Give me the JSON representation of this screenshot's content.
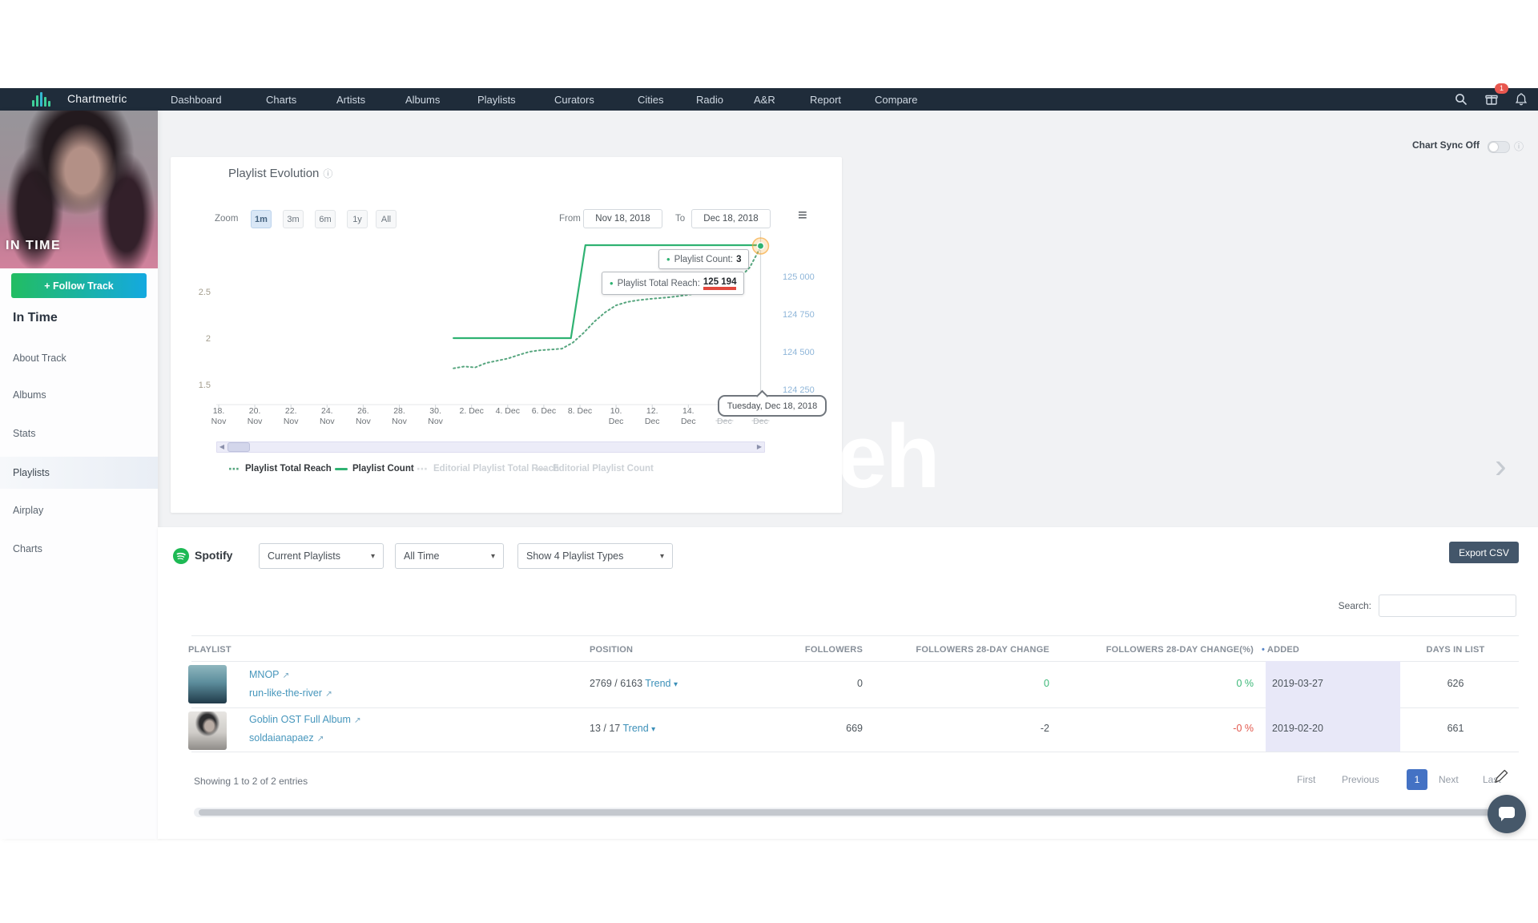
{
  "navbar": {
    "brand": "Chartmetric",
    "items": [
      "Dashboard",
      "Charts",
      "Artists",
      "Albums",
      "Playlists",
      "Curators",
      "Cities",
      "Radio",
      "A&R",
      "Report",
      "Compare"
    ],
    "badge_count": "1"
  },
  "sidebar": {
    "album_overlay": "IN TIME",
    "follow_button": "+ Follow Track",
    "track_title": "In Time",
    "items": [
      "About Track",
      "Albums",
      "Stats",
      "Playlists",
      "Airplay",
      "Charts"
    ],
    "active_item": "Playlists"
  },
  "chart_sync": {
    "label": "Chart Sync Off"
  },
  "chart_card": {
    "title": "Playlist Evolution",
    "zoom_label": "Zoom",
    "zoom_options": [
      "1m",
      "3m",
      "6m",
      "1y",
      "All"
    ],
    "zoom_active": "1m",
    "from_label": "From",
    "from_value": "Nov 18, 2018",
    "to_label": "To",
    "to_value": "Dec 18, 2018"
  },
  "chart_data": {
    "type": "line",
    "title": "Playlist Evolution",
    "x_ticks": [
      "18. Nov",
      "20. Nov",
      "22. Nov",
      "24. Nov",
      "26. Nov",
      "28. Nov",
      "30. Nov",
      "2. Dec",
      "4. Dec",
      "6. Dec",
      "8. Dec",
      "10. Dec",
      "12. Dec",
      "14. Dec",
      "16. Dec",
      "18. Dec"
    ],
    "x_range": [
      "Nov 18, 2018",
      "Dec 18, 2018"
    ],
    "y_left": {
      "ticks": [
        2.5,
        2,
        1.5
      ]
    },
    "y_right": {
      "ticks": [
        "125 000",
        "124 750",
        "124 500",
        "124 250"
      ],
      "values": [
        125000,
        124750,
        124500,
        124250
      ]
    },
    "series": [
      {
        "name": "Playlist Total Reach",
        "style": "dotted",
        "axis": "right",
        "color": "#57a67f",
        "points": [
          [
            13,
            124390
          ],
          [
            13.6,
            124402
          ],
          [
            14.2,
            124396
          ],
          [
            14.8,
            124425
          ],
          [
            15.4,
            124440
          ],
          [
            16,
            124455
          ],
          [
            16.6,
            124478
          ],
          [
            17.2,
            124500
          ],
          [
            17.8,
            124510
          ],
          [
            18.4,
            124515
          ],
          [
            19,
            124520
          ],
          [
            19.6,
            124560
          ],
          [
            20.2,
            124625
          ],
          [
            20.8,
            124700
          ],
          [
            21.4,
            124762
          ],
          [
            22,
            124808
          ],
          [
            22.6,
            124830
          ],
          [
            23.2,
            124842
          ],
          [
            24,
            124852
          ],
          [
            25,
            124862
          ],
          [
            26,
            124878
          ],
          [
            27,
            124898
          ],
          [
            27.6,
            124912
          ],
          [
            28.2,
            124942
          ],
          [
            28.8,
            124985
          ],
          [
            29.4,
            125060
          ],
          [
            30,
            125194
          ]
        ]
      },
      {
        "name": "Playlist Count",
        "style": "solid",
        "axis": "left",
        "color": "#2fb272",
        "points": [
          [
            13,
            2
          ],
          [
            19.5,
            2
          ],
          [
            20.3,
            3
          ],
          [
            30,
            3
          ]
        ]
      },
      {
        "name": "Editorial Playlist Total Reach",
        "disabled": true
      },
      {
        "name": "Editorial Playlist Count",
        "disabled": true
      }
    ],
    "tooltip": {
      "date": "Tuesday, Dec 18, 2018",
      "count_label": "Playlist Count:",
      "count_value": "3",
      "reach_label": "Playlist Total Reach:",
      "reach_value": "125 194"
    },
    "legend_position": "bottom"
  },
  "spotify_section": {
    "platform": "Spotify",
    "filters": [
      "Current Playlists",
      "All Time",
      "Show 4 Playlist Types"
    ],
    "export_label": "Export CSV",
    "search_label": "Search:",
    "search_value": ""
  },
  "table": {
    "headers": [
      "PLAYLIST",
      "POSITION",
      "FOLLOWERS",
      "FOLLOWERS 28-DAY CHANGE",
      "FOLLOWERS 28-DAY CHANGE(%)",
      "ADDED",
      "DAYS IN LIST"
    ],
    "sorted_by": "ADDED",
    "rows": [
      {
        "thumb": "ocean",
        "name": "MNOP",
        "owner": "run-like-the-river",
        "position": "2769 / 6163",
        "trend_label": "Trend",
        "followers": "0",
        "change": "0",
        "change_pct": "0 %",
        "added": "2019-03-27",
        "days": "626",
        "change_state": "positive"
      },
      {
        "thumb": "portrait",
        "name": "Goblin OST Full Album",
        "owner": "soldaianapaez",
        "position": "13 / 17",
        "trend_label": "Trend",
        "followers": "669",
        "change": "-2",
        "change_pct": "-0 %",
        "added": "2019-02-20",
        "days": "661",
        "change_state": "negative"
      }
    ]
  },
  "footer": {
    "showing": "Showing 1 to 2 of 2 entries",
    "pagination": [
      "First",
      "Previous",
      "1",
      "Next",
      "Last"
    ],
    "current_page": "1"
  },
  "watermark": {
    "text": "eh"
  },
  "colors": {
    "navbar_bg": "#1f2c3a",
    "accent_green": "#2fb272",
    "link_blue": "#4696bc",
    "positive": "#3cb878",
    "negative": "#e2574c",
    "lavender_band": "#e8e8f8",
    "pagination_active": "#4472c4",
    "export_bg": "#43566a",
    "badge_red": "#e8574f"
  },
  "icons": {
    "dots": "⋯",
    "caret_down": "▾",
    "external_link": "↗",
    "info": "ⓘ",
    "hamburger": "≡",
    "bullet": "•",
    "sort_dot": "•",
    "nav_left": "◀",
    "nav_right": "▶",
    "chevron_right": "›"
  }
}
